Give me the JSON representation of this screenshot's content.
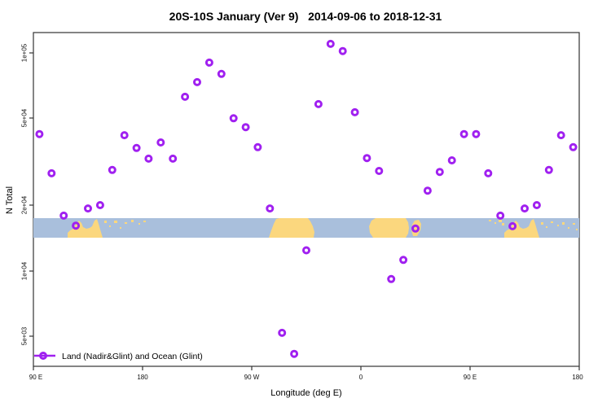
{
  "title": "20S-10S January (Ver 9)   2014-09-06 to 2018-12-31",
  "chart_data": {
    "type": "scatter",
    "title": "20S-10S January (Ver 9)   2014-09-06 to 2018-12-31",
    "xlabel": "Longitude (deg E)",
    "ylabel": "N Total",
    "y_scale": "log",
    "ylim": [
      3600,
      125000
    ],
    "x_axis_span_deg": [
      90,
      540
    ],
    "grid": false,
    "marker_color": "#A020F0",
    "x_ticks": [
      {
        "label": "90 E",
        "deg": 90
      },
      {
        "label": "180",
        "deg": 180
      },
      {
        "label": "90 W",
        "deg": 270
      },
      {
        "label": "0",
        "deg": 360
      },
      {
        "label": "90 E",
        "deg": 450
      },
      {
        "label": "180",
        "deg": 540
      }
    ],
    "y_ticks": [
      {
        "label": "5e+03",
        "value": 5000
      },
      {
        "label": "1e+04",
        "value": 10000
      },
      {
        "label": "2e+04",
        "value": 20000
      },
      {
        "label": "5e+04",
        "value": 50000
      },
      {
        "label": "1e+05",
        "value": 100000
      }
    ],
    "legend": {
      "label": "Land (Nadir&Glint) and Ocean (Glint)",
      "position": "bottom-left"
    },
    "map_band": {
      "description": "land/ocean strip for latitudes 20S-10S drawn across the plot",
      "ocean_color": "#A9BFDC",
      "land_color": "#FBD77E"
    },
    "series": [
      {
        "name": "Land (Nadir&Glint) and Ocean (Glint)",
        "points": [
          {
            "lon": 95,
            "n": 42400
          },
          {
            "lon": 105,
            "n": 28000
          },
          {
            "lon": 115,
            "n": 17900
          },
          {
            "lon": 125,
            "n": 16100
          },
          {
            "lon": 135,
            "n": 19300
          },
          {
            "lon": 145,
            "n": 20000
          },
          {
            "lon": 155,
            "n": 29000
          },
          {
            "lon": 165,
            "n": 41900
          },
          {
            "lon": 175,
            "n": 36600
          },
          {
            "lon": 185,
            "n": 32700
          },
          {
            "lon": 195,
            "n": 38800
          },
          {
            "lon": 205,
            "n": 32700
          },
          {
            "lon": 215,
            "n": 62900
          },
          {
            "lon": 225,
            "n": 73400
          },
          {
            "lon": 235,
            "n": 90300
          },
          {
            "lon": 245,
            "n": 80100
          },
          {
            "lon": 255,
            "n": 50100
          },
          {
            "lon": 265,
            "n": 45600
          },
          {
            "lon": 275,
            "n": 36900
          },
          {
            "lon": 285,
            "n": 19300
          },
          {
            "lon": 295,
            "n": 5180
          },
          {
            "lon": 305,
            "n": 4150
          },
          {
            "lon": 315,
            "n": 12400
          },
          {
            "lon": 325,
            "n": 58200
          },
          {
            "lon": 335,
            "n": 110000
          },
          {
            "lon": 345,
            "n": 102000
          },
          {
            "lon": 355,
            "n": 53400
          },
          {
            "lon": 365,
            "n": 32900
          },
          {
            "lon": 375,
            "n": 28700
          },
          {
            "lon": 385,
            "n": 9150
          },
          {
            "lon": 395,
            "n": 11200
          },
          {
            "lon": 405,
            "n": 15600
          },
          {
            "lon": 415,
            "n": 23300
          },
          {
            "lon": 425,
            "n": 28400
          },
          {
            "lon": 435,
            "n": 32100
          },
          {
            "lon": 445,
            "n": 42400
          },
          {
            "lon": 455,
            "n": 42400
          },
          {
            "lon": 465,
            "n": 28000
          },
          {
            "lon": 475,
            "n": 17900
          },
          {
            "lon": 485,
            "n": 16000
          },
          {
            "lon": 495,
            "n": 19300
          },
          {
            "lon": 505,
            "n": 20000
          },
          {
            "lon": 515,
            "n": 29000
          },
          {
            "lon": 525,
            "n": 41900
          },
          {
            "lon": 535,
            "n": 36900
          }
        ]
      }
    ]
  }
}
